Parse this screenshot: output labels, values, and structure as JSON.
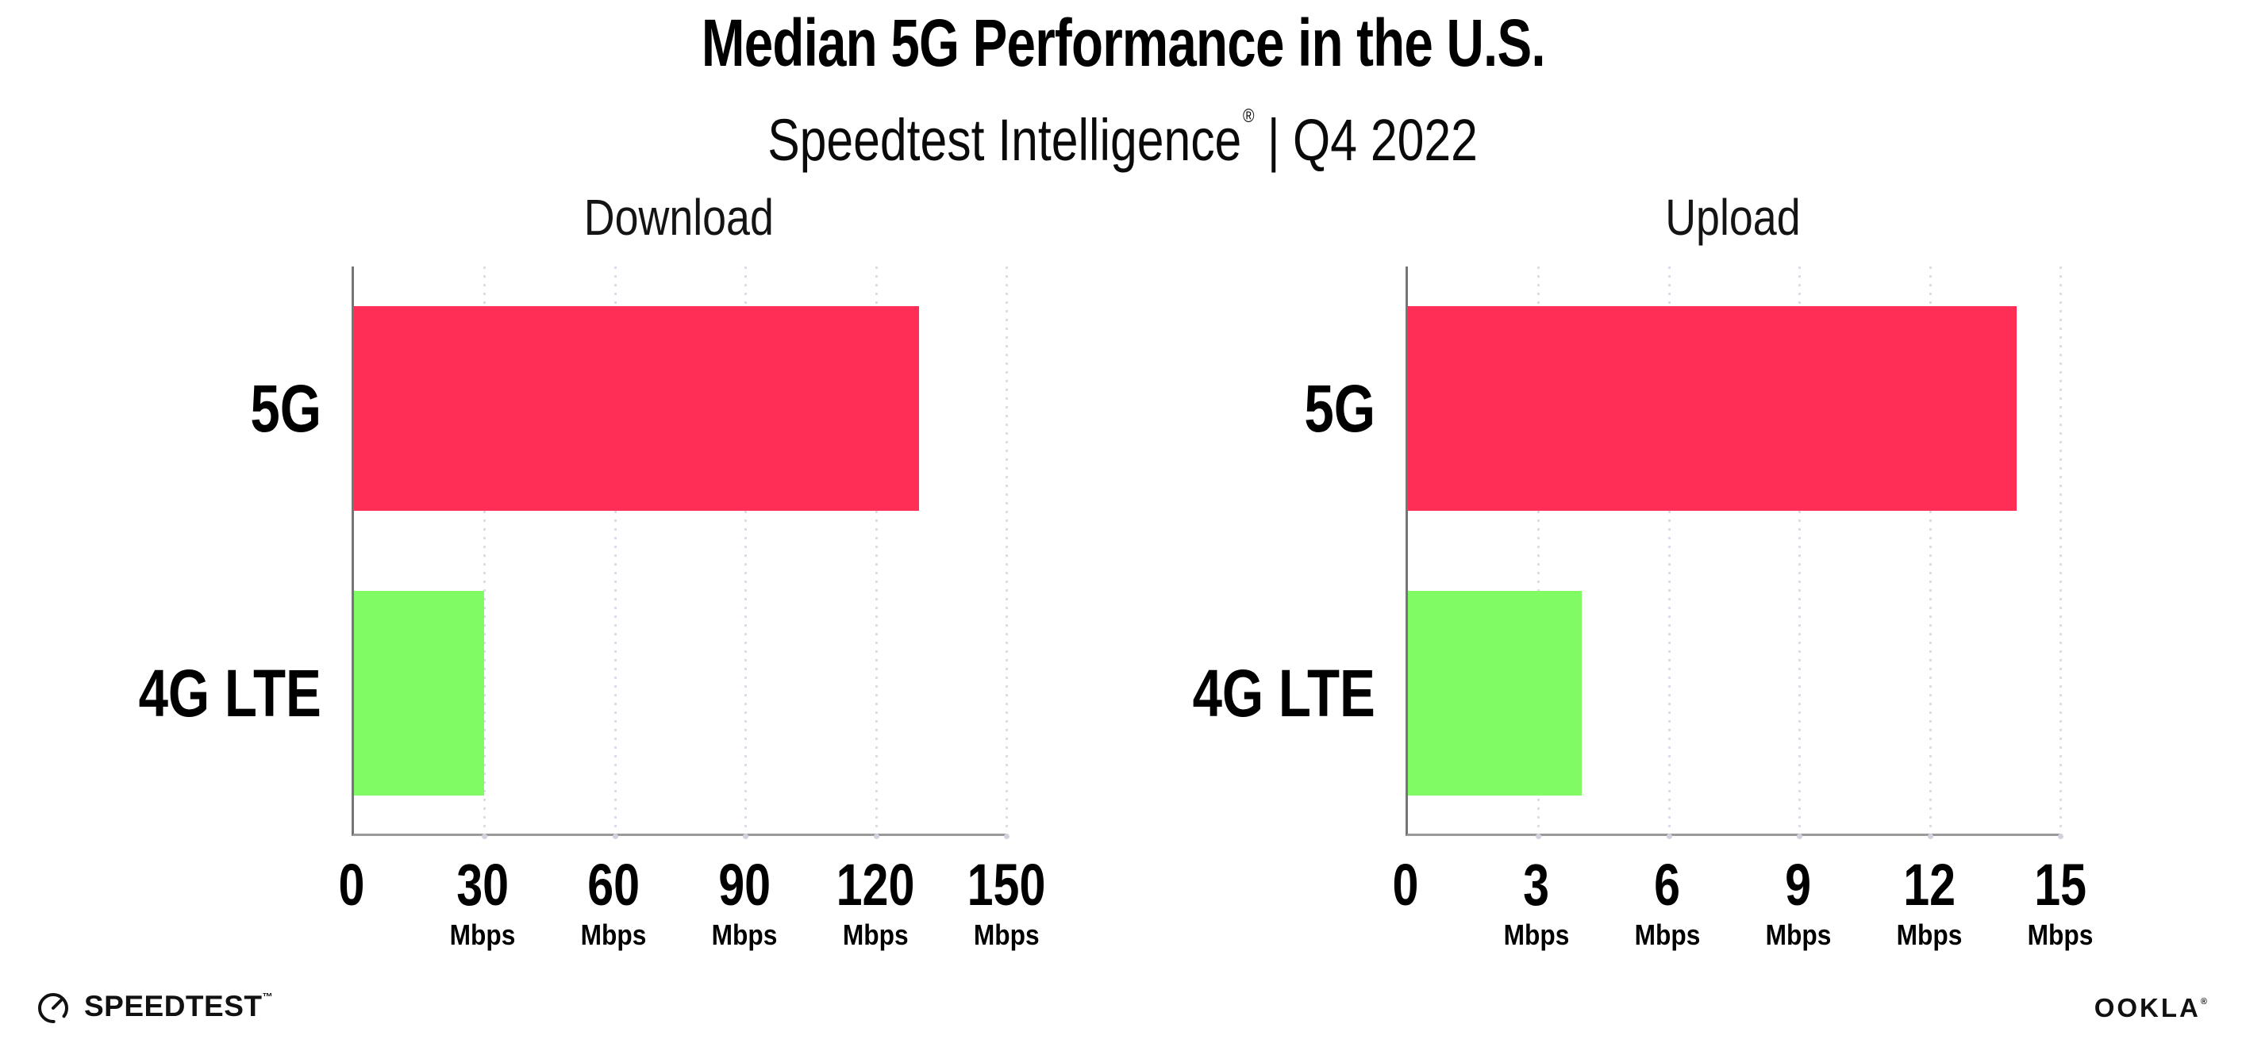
{
  "header": {
    "title": "Median 5G Performance in the U.S.",
    "subtitle_brand": "Speedtest Intelligence",
    "subtitle_reg": "®",
    "subtitle_divider": "|",
    "subtitle_period": "Q4 2022"
  },
  "chart_data": [
    {
      "type": "bar",
      "orientation": "horizontal",
      "title": "Download",
      "categories": [
        "5G",
        "4G LTE"
      ],
      "values": [
        130,
        30
      ],
      "unit": "Mbps",
      "xlim": [
        0,
        150
      ],
      "xticks": [
        0,
        30,
        60,
        90,
        120,
        150
      ],
      "bar_colors": [
        "#FF2E56",
        "#80FB63"
      ],
      "grid": "dotted vertical line at each tick",
      "legend": "none"
    },
    {
      "type": "bar",
      "orientation": "horizontal",
      "title": "Upload",
      "categories": [
        "5G",
        "4G LTE"
      ],
      "values": [
        14,
        4
      ],
      "unit": "Mbps",
      "xlim": [
        0,
        15
      ],
      "xticks": [
        0,
        3,
        6,
        9,
        12,
        15
      ],
      "bar_colors": [
        "#FF2E56",
        "#80FB63"
      ],
      "grid": "dotted vertical line at each tick",
      "legend": "none"
    }
  ],
  "colors": {
    "bar_5g": "#FF2E56",
    "bar_4g_lte": "#80FB63",
    "axis": "#8A8A8A",
    "grid_dot": "#DCDCE8",
    "text": "#000000"
  },
  "footer": {
    "speedtest_label": "SPEEDTEST",
    "speedtest_tm": "™",
    "ookla_label": "OOKLA",
    "ookla_reg": "®"
  }
}
